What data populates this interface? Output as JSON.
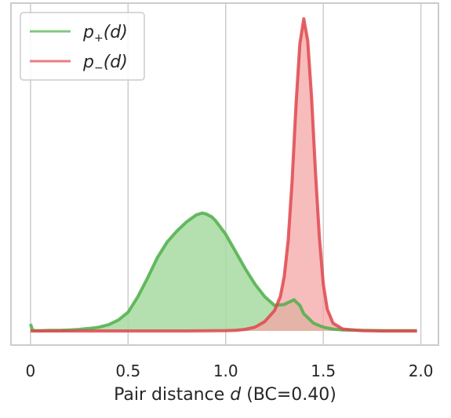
{
  "chart_data": {
    "type": "area",
    "xlabel": "Pair distance d (BC=0.40)",
    "xlabel_parts": {
      "prefix": "Pair distance ",
      "var": "d",
      "suffix": " (BC=0.40)"
    },
    "xticks": [
      0,
      0.5,
      1.0,
      1.5,
      2.0
    ],
    "xtick_labels": [
      "0",
      "0.5",
      "1.0",
      "1.5",
      "2.0"
    ],
    "xlim": [
      -0.1,
      2.09
    ],
    "ylim": [
      0,
      1.0
    ],
    "grid": "vertical",
    "legend_position": "top-left",
    "series": [
      {
        "name": "p+(d)",
        "legend": {
          "base": "p",
          "sub": "+",
          "arg": "(d)"
        },
        "color": "#4daf4a",
        "fill": "#a6dba0",
        "x": [
          0,
          0.01,
          0.02,
          0.05,
          0.1,
          0.15,
          0.2,
          0.25,
          0.3,
          0.35,
          0.4,
          0.45,
          0.5,
          0.55,
          0.6,
          0.65,
          0.7,
          0.75,
          0.8,
          0.85,
          0.88,
          0.9,
          0.93,
          0.95,
          1.0,
          1.05,
          1.1,
          1.15,
          1.2,
          1.25,
          1.3,
          1.35,
          1.38,
          1.4,
          1.45,
          1.5,
          1.55,
          1.6,
          1.7,
          1.8,
          1.9,
          1.98
        ],
        "values": [
          0.022,
          0.004,
          0.001,
          0.001,
          0.002,
          0.002,
          0.003,
          0.005,
          0.008,
          0.012,
          0.02,
          0.035,
          0.06,
          0.11,
          0.17,
          0.235,
          0.285,
          0.32,
          0.35,
          0.372,
          0.378,
          0.375,
          0.365,
          0.352,
          0.31,
          0.255,
          0.2,
          0.15,
          0.11,
          0.082,
          0.085,
          0.1,
          0.082,
          0.055,
          0.025,
          0.012,
          0.006,
          0.003,
          0.002,
          0.001,
          0.001,
          0.001
        ]
      },
      {
        "name": "p−(d)",
        "legend": {
          "base": "p",
          "sub": "−",
          "arg": "(d)"
        },
        "color": "#e0474c",
        "fill": "#f4a6a6",
        "x": [
          0,
          0.2,
          0.4,
          0.6,
          0.8,
          1.0,
          1.05,
          1.1,
          1.15,
          1.2,
          1.25,
          1.28,
          1.3,
          1.32,
          1.34,
          1.36,
          1.38,
          1.4,
          1.42,
          1.44,
          1.46,
          1.48,
          1.5,
          1.52,
          1.55,
          1.6,
          1.7,
          1.8,
          1.98
        ],
        "values": [
          0,
          0,
          0,
          0,
          0,
          0.001,
          0.002,
          0.005,
          0.012,
          0.03,
          0.065,
          0.11,
          0.175,
          0.29,
          0.48,
          0.72,
          0.92,
          1.0,
          0.93,
          0.75,
          0.51,
          0.3,
          0.15,
          0.07,
          0.025,
          0.006,
          0.001,
          0,
          0
        ]
      }
    ]
  }
}
